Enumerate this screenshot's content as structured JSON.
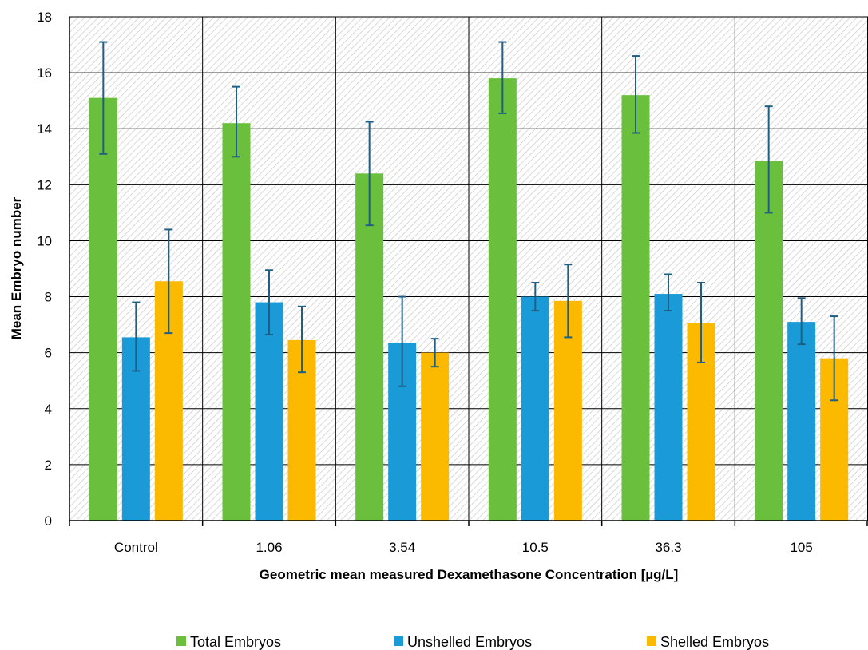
{
  "chart_data": {
    "type": "bar",
    "title": "",
    "xlabel": "Geometric mean measured Dexamethasone Concentration [µg/L]",
    "ylabel": "Mean Embryo number",
    "ylim": [
      0,
      18
    ],
    "yticks": [
      0,
      2,
      4,
      6,
      8,
      10,
      12,
      14,
      16,
      18
    ],
    "grid": true,
    "legend_position": "bottom",
    "categories": [
      "Control",
      "1.06",
      "3.54",
      "10.5",
      "36.3",
      "105"
    ],
    "series": [
      {
        "name": "Total Embryos",
        "color": "#6ABF3C",
        "values": [
          15.1,
          14.2,
          12.4,
          15.8,
          15.2,
          12.85
        ],
        "error_low": [
          13.1,
          13.0,
          10.55,
          14.55,
          13.85,
          11.0
        ],
        "error_high": [
          17.1,
          15.5,
          14.25,
          17.1,
          16.6,
          14.8
        ]
      },
      {
        "name": "Unshelled Embryos",
        "color": "#1A9BD7",
        "values": [
          6.55,
          7.8,
          6.35,
          8.0,
          8.1,
          7.1
        ],
        "error_low": [
          5.35,
          6.65,
          4.8,
          7.5,
          7.5,
          6.3
        ],
        "error_high": [
          7.8,
          8.95,
          8.0,
          8.5,
          8.8,
          7.95
        ]
      },
      {
        "name": "Shelled Embryos",
        "color": "#FBB900",
        "values": [
          8.55,
          6.45,
          6.0,
          7.85,
          7.05,
          5.8
        ],
        "error_low": [
          6.7,
          5.3,
          5.5,
          6.55,
          5.65,
          4.3
        ],
        "error_high": [
          10.4,
          7.65,
          6.5,
          9.15,
          8.5,
          7.3
        ]
      }
    ],
    "error_bar_color": "#1F5F84"
  }
}
